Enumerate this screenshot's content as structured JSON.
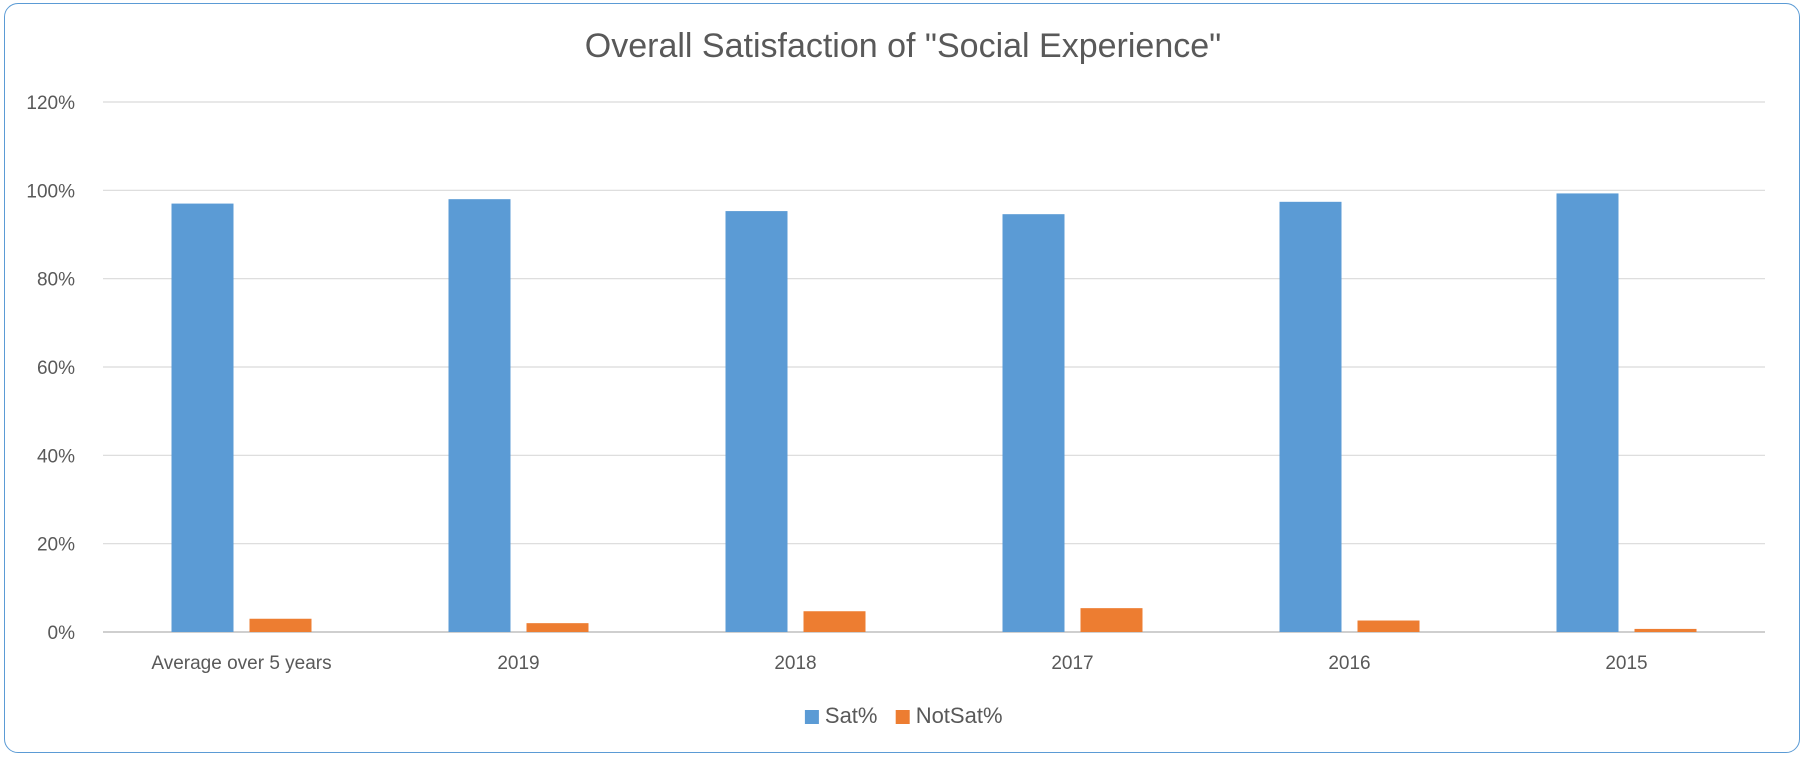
{
  "chart_data": {
    "type": "bar",
    "title": "Overall Satisfaction of \"Social Experience\"",
    "xlabel": "",
    "ylabel": "",
    "categories": [
      "Average over 5 years",
      "2019",
      "2018",
      "2017",
      "2016",
      "2015"
    ],
    "series": [
      {
        "name": "Sat%",
        "color": "#5b9bd5",
        "values": [
          97,
          98,
          95.3,
          94.6,
          97.4,
          99.3
        ]
      },
      {
        "name": "NotSat%",
        "color": "#ed7d31",
        "values": [
          3,
          2,
          4.7,
          5.4,
          2.6,
          0.7
        ]
      }
    ],
    "ylim": [
      0,
      120
    ],
    "yticks": [
      0,
      20,
      40,
      60,
      80,
      100,
      120
    ],
    "ytick_labels": [
      "0%",
      "20%",
      "40%",
      "60%",
      "80%",
      "100%",
      "120%"
    ],
    "grid": true,
    "legend_position": "bottom"
  }
}
